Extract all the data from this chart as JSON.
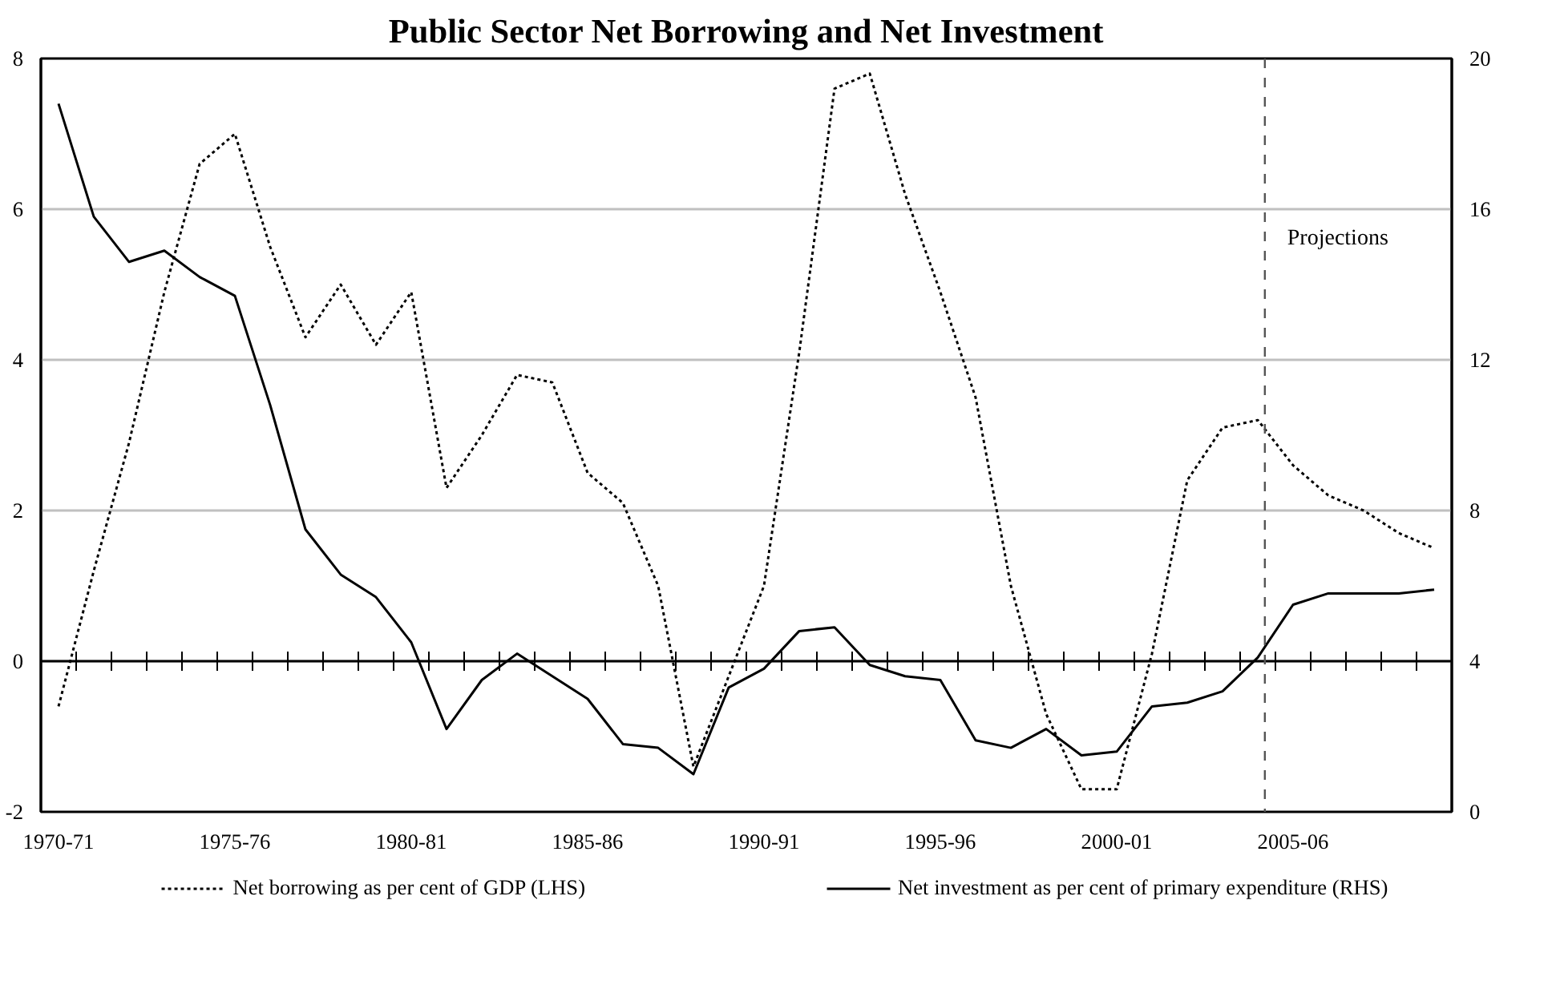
{
  "chart_data": {
    "type": "line",
    "title": "Public Sector Net Borrowing and Net Investment",
    "categories": [
      "1970-71",
      null,
      null,
      null,
      null,
      "1975-76",
      null,
      null,
      null,
      null,
      "1980-81",
      null,
      null,
      null,
      null,
      "1985-86",
      null,
      null,
      null,
      null,
      "1990-91",
      null,
      null,
      null,
      null,
      "1995-96",
      null,
      null,
      null,
      null,
      "2000-01",
      null,
      null,
      null,
      null,
      "2005-06",
      null,
      null,
      null,
      null
    ],
    "ylim": [
      -2,
      8
    ],
    "yticks": [
      -2,
      0,
      2,
      4,
      6,
      8
    ],
    "y2lim": [
      0,
      20
    ],
    "y2ticks": [
      0,
      4,
      8,
      12,
      16,
      20
    ],
    "series": [
      {
        "name": "Net borrowing as per cent of GDP (LHS)",
        "color": "#000000",
        "line_style": "dotted",
        "values": [
          -0.6,
          1.2,
          2.9,
          4.9,
          6.6,
          7.0,
          5.5,
          4.3,
          5.0,
          4.2,
          4.9,
          2.3,
          3.0,
          3.8,
          3.7,
          2.5,
          2.1,
          1.0,
          -1.4,
          -0.2,
          1.0,
          4.1,
          7.6,
          7.8,
          6.2,
          4.9,
          3.5,
          1.0,
          -0.7,
          -1.7,
          -1.7,
          0.1,
          2.4,
          3.1,
          3.2,
          2.6,
          2.2,
          2.0,
          1.7,
          1.5
        ]
      },
      {
        "name": "Net investment as per cent of primary expenditure (RHS)",
        "color": "#000000",
        "line_style": "solid",
        "axis": "y2",
        "values": [
          18.8,
          15.8,
          14.6,
          14.9,
          14.2,
          13.7,
          10.8,
          7.5,
          6.3,
          5.7,
          4.5,
          2.2,
          3.5,
          4.2,
          3.6,
          3.0,
          1.8,
          1.7,
          1.0,
          3.3,
          3.8,
          4.8,
          4.9,
          3.9,
          3.6,
          3.5,
          1.9,
          1.7,
          2.2,
          1.5,
          1.6,
          2.8,
          2.9,
          3.2,
          4.1,
          5.5,
          5.8,
          5.8,
          5.8,
          5.9
        ]
      }
    ],
    "annotations": [
      "Projections"
    ],
    "grid": "y",
    "legend": "bottom"
  }
}
